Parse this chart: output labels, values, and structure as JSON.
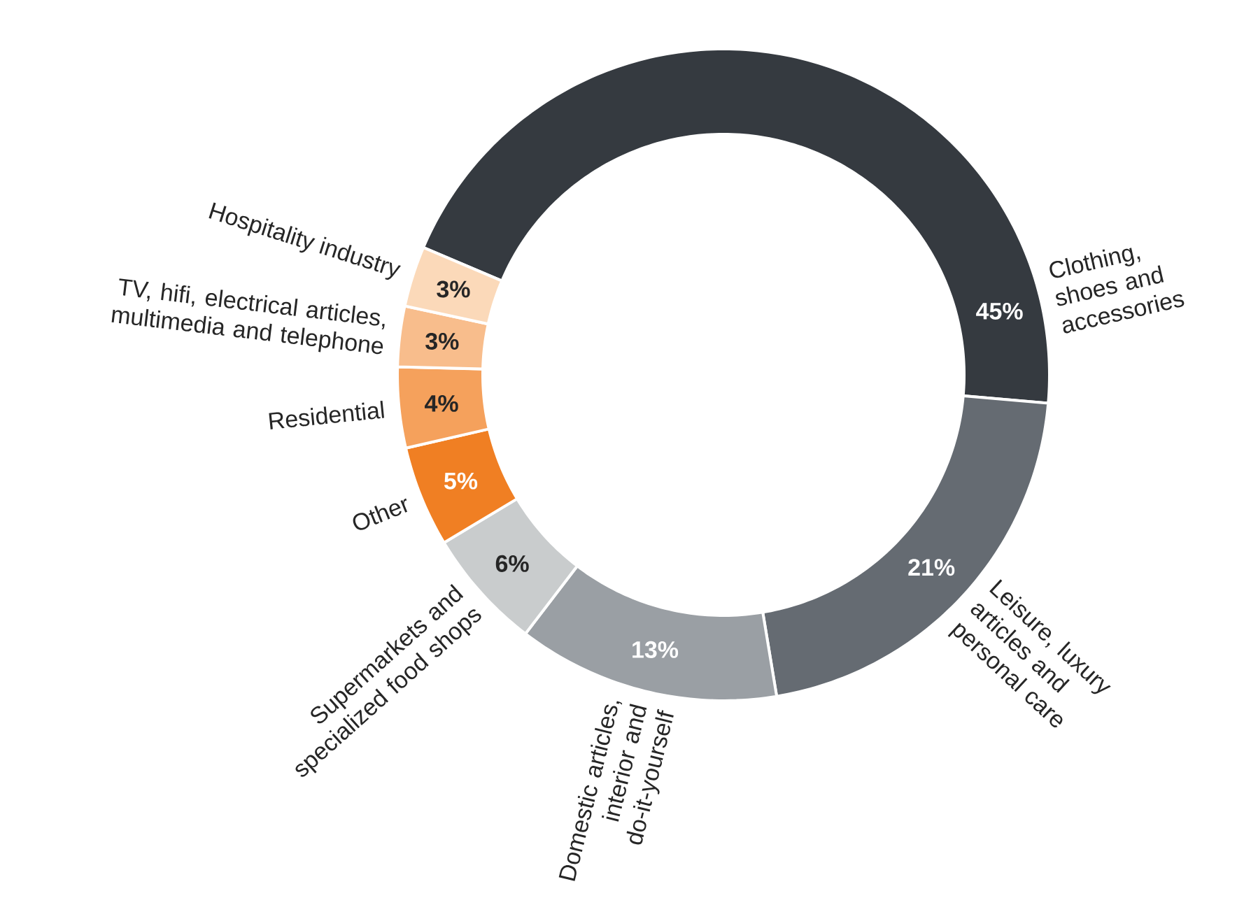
{
  "chart_data": {
    "type": "donut",
    "categories": [
      "Clothing, shoes and accessories",
      "Leisure, luxury articles and personal care",
      "Domestic articles, interior and do-it-yourself",
      "Supermarkets and specialized food shops",
      "Other",
      "Residential",
      "TV, hifi, electrical articles, multimedia and telephone",
      "Hospitality industry"
    ],
    "values": [
      45,
      21,
      13,
      6,
      5,
      4,
      3,
      3
    ],
    "colors": [
      "#353a40",
      "#656b72",
      "#9a9fa4",
      "#c9cccd",
      "#f07f23",
      "#f5a15c",
      "#f8bd8c",
      "#fbd9b9"
    ],
    "value_labels": [
      "45%",
      "21%",
      "13%",
      "6%",
      "5%",
      "4%",
      "3%",
      "3%"
    ]
  }
}
